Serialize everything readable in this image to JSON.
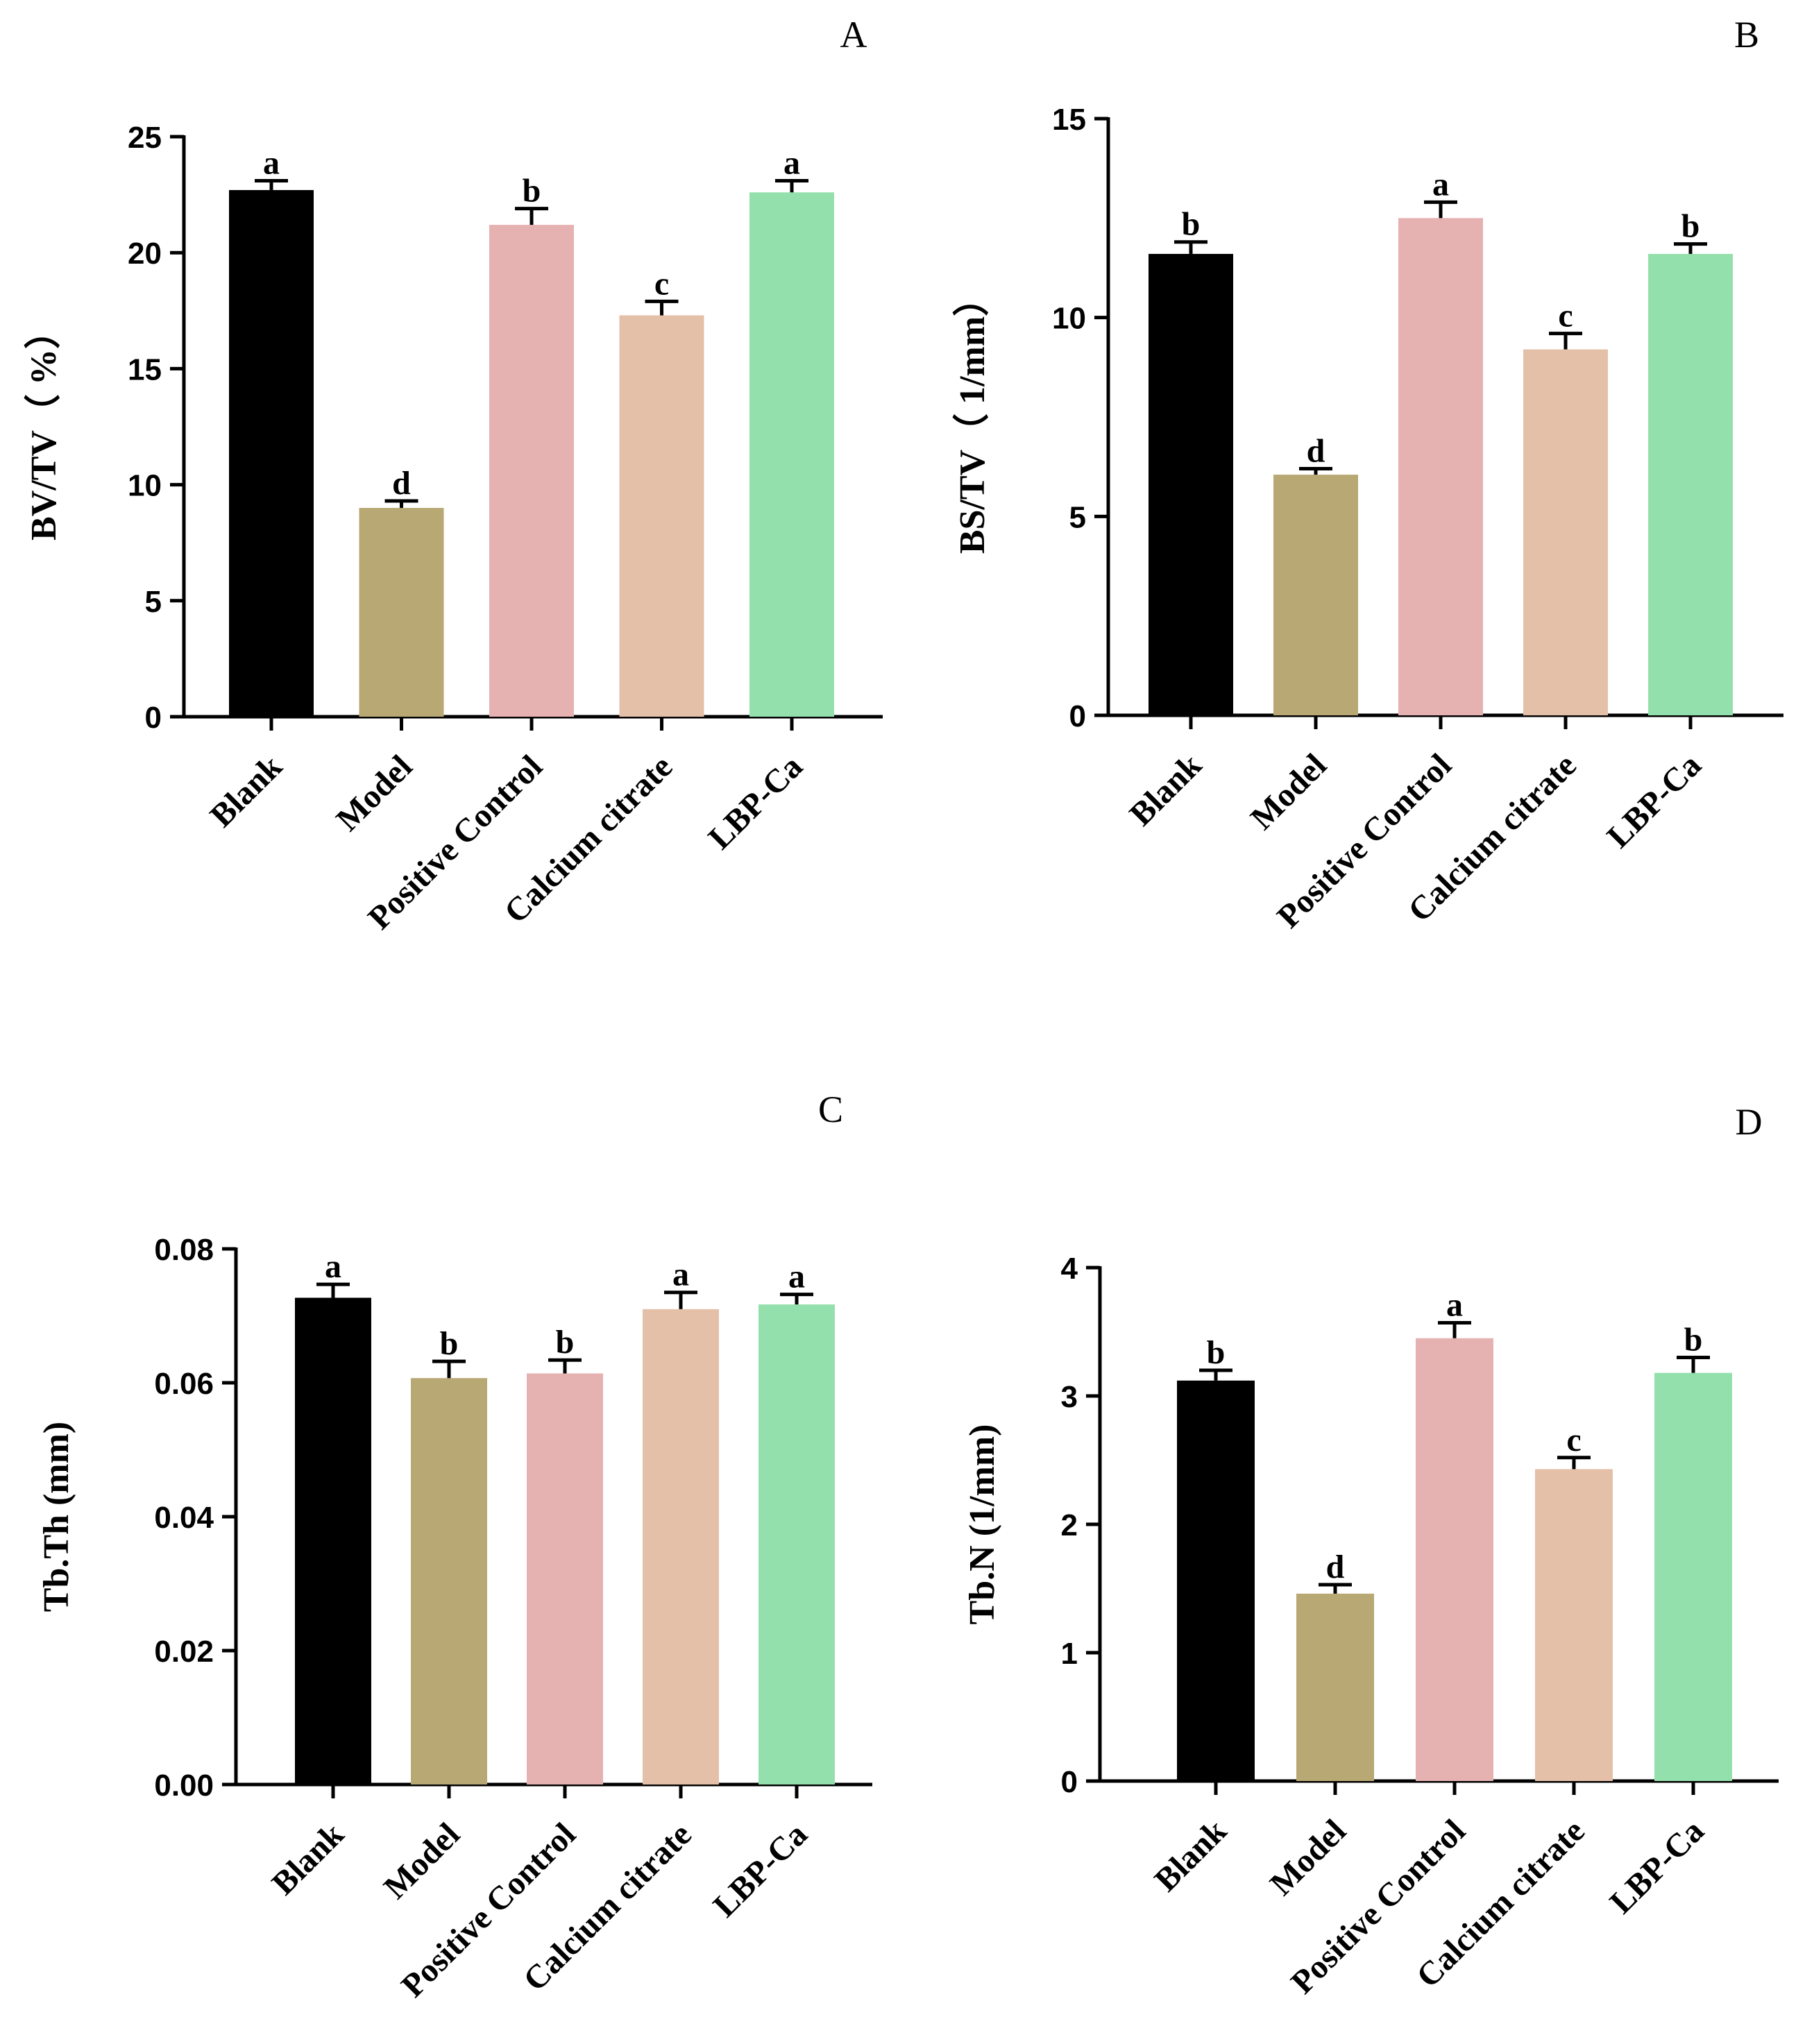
{
  "colors": {
    "Blank": "#000000",
    "Model": "#b8a874",
    "Positive Control": "#e6b1b1",
    "Calcium citrate": "#e5c0a8",
    "LBP-Ca": "#94e0ac"
  },
  "chart_data": [
    {
      "type": "bar",
      "panel": "A",
      "categories": [
        "Blank",
        "Model",
        "Positive Control",
        "Calcium citrate",
        "LBP-Ca"
      ],
      "values": [
        22.7,
        9.0,
        21.2,
        17.3,
        22.6
      ],
      "errors": [
        0.4,
        0.3,
        0.7,
        0.6,
        0.5
      ],
      "significance": [
        "a",
        "d",
        "b",
        "c",
        "a"
      ],
      "ylabel": "BV/TV（ %）",
      "ylim": [
        0,
        25
      ],
      "yticks": [
        0,
        5,
        10,
        15,
        20,
        25
      ]
    },
    {
      "type": "bar",
      "panel": "B",
      "categories": [
        "Blank",
        "Model",
        "Positive Control",
        "Calcium citrate",
        "LBP-Ca"
      ],
      "values": [
        11.6,
        6.05,
        12.5,
        9.2,
        11.6
      ],
      "errors": [
        0.3,
        0.15,
        0.4,
        0.4,
        0.25
      ],
      "significance": [
        "b",
        "d",
        "a",
        "c",
        "b"
      ],
      "ylabel": "BS/TV（ 1/mm）",
      "ylim": [
        0,
        15
      ],
      "yticks": [
        0,
        5,
        10,
        15
      ]
    },
    {
      "type": "bar",
      "panel": "C",
      "categories": [
        "Blank",
        "Model",
        "Positive Control",
        "Calcium citrate",
        "LBP-Ca"
      ],
      "values": [
        0.0727,
        0.0607,
        0.0614,
        0.071,
        0.0717
      ],
      "errors": [
        0.002,
        0.0025,
        0.002,
        0.0025,
        0.0015
      ],
      "significance": [
        "a",
        "b",
        "b",
        "a",
        "a"
      ],
      "ylabel": "Tb.Th (mm)",
      "ylim": [
        0,
        0.08
      ],
      "yticks": [
        "0.00",
        "0.02",
        "0.04",
        "0.06",
        "0.08"
      ]
    },
    {
      "type": "bar",
      "panel": "D",
      "categories": [
        "Blank",
        "Model",
        "Positive Control",
        "Calcium citrate",
        "LBP-Ca"
      ],
      "values": [
        3.12,
        1.46,
        3.45,
        2.43,
        3.18
      ],
      "errors": [
        0.08,
        0.07,
        0.12,
        0.09,
        0.12
      ],
      "significance": [
        "b",
        "d",
        "a",
        "c",
        "b"
      ],
      "ylabel": "Tb.N (1/mm)",
      "ylim": [
        0,
        4
      ],
      "yticks": [
        0,
        1,
        2,
        3,
        4
      ]
    }
  ]
}
